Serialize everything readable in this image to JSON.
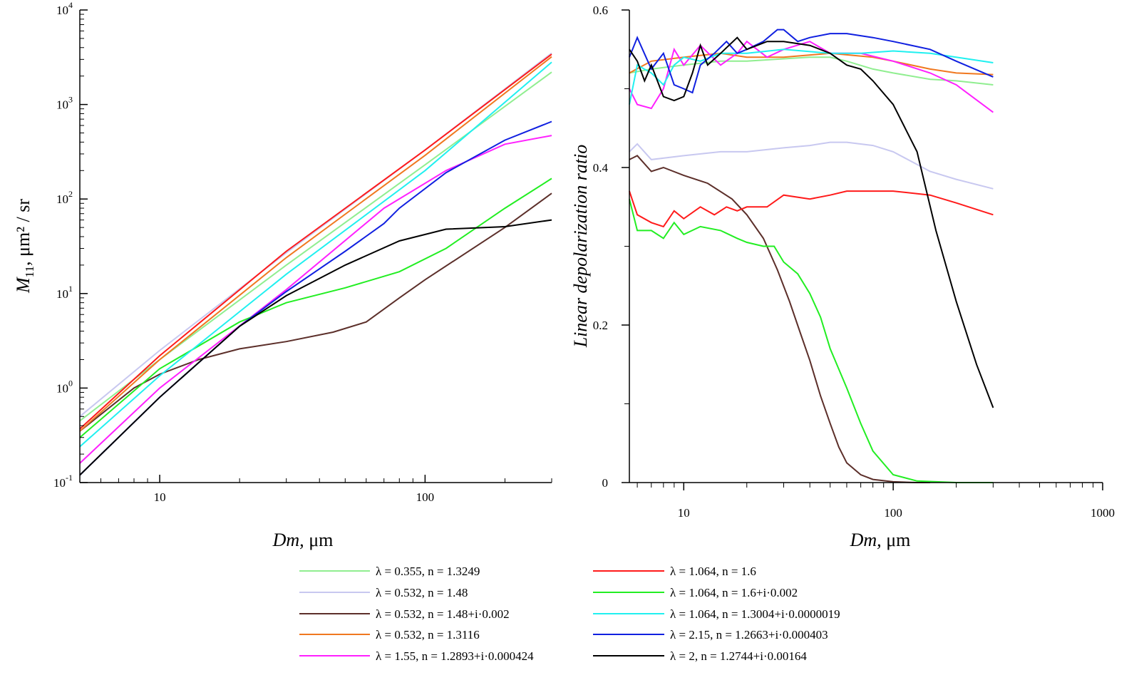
{
  "legend": [
    {
      "id": "s1",
      "label": "λ = 0.355, n = 1.3249",
      "color": "#90EE90"
    },
    {
      "id": "s2",
      "label": "λ = 0.532, n = 1.48",
      "color": "#C8C8F0"
    },
    {
      "id": "s3",
      "label": "λ = 0.532, n = 1.48+i·0.002",
      "color": "#5C2F2A"
    },
    {
      "id": "s4",
      "label": "λ = 0.532, n = 1.3116",
      "color": "#F07820"
    },
    {
      "id": "s5",
      "label": "λ = 1.55, n = 1.2893+i·0.000424",
      "color": "#FF20FF"
    },
    {
      "id": "s6",
      "label": "λ = 1.064, n = 1.6",
      "color": "#FF1A1A"
    },
    {
      "id": "s7",
      "label": "λ = 1.064, n = 1.6+i·0.002",
      "color": "#22EE22"
    },
    {
      "id": "s8",
      "label": "λ = 1.064, n = 1.3004+i·0.0000019",
      "color": "#20F0F0"
    },
    {
      "id": "s9",
      "label": "λ = 2.15, n = 1.2663+i·0.000403",
      "color": "#1020E0"
    },
    {
      "id": "s10",
      "label": "λ = 2, n = 1.2744+i·0.00164",
      "color": "#000000"
    }
  ],
  "chart_data": [
    {
      "type": "line",
      "xlabel": "Dm, μm",
      "ylabel": "M11, μm² / sr",
      "ylabel_main": "M",
      "ylabel_sub": "11",
      "ylabel_rest": ", μm² / sr",
      "xscale": "log",
      "yscale": "log",
      "xlim": [
        5,
        300
      ],
      "ylim": [
        0.1,
        10000
      ],
      "xticks_labeled": [
        {
          "value": 10,
          "label": "10"
        },
        {
          "value": 100,
          "label": "100"
        }
      ],
      "yticks": [
        {
          "value": 0.1,
          "base": "10",
          "exp": "-1"
        },
        {
          "value": 1,
          "base": "10",
          "exp": "0"
        },
        {
          "value": 10,
          "base": "10",
          "exp": "1"
        },
        {
          "value": 100,
          "base": "10",
          "exp": "2"
        },
        {
          "value": 1000,
          "base": "10",
          "exp": "3"
        },
        {
          "value": 10000,
          "base": "10",
          "exp": "4"
        }
      ],
      "series": [
        {
          "id": "s1",
          "x": [
            5,
            10,
            30,
            100,
            300
          ],
          "y": [
            0.45,
            2.0,
            20,
            230,
            2200
          ]
        },
        {
          "id": "s2",
          "x": [
            5,
            10,
            30,
            100,
            300
          ],
          "y": [
            0.5,
            2.5,
            27,
            330,
            3500
          ]
        },
        {
          "id": "s3",
          "x": [
            5,
            8,
            10,
            14,
            20,
            30,
            45,
            60,
            80,
            100,
            200,
            300
          ],
          "y": [
            0.35,
            1.0,
            1.4,
            2.0,
            2.6,
            3.1,
            3.9,
            5.0,
            9,
            14,
            50,
            115
          ]
        },
        {
          "id": "s4",
          "x": [
            5,
            10,
            30,
            100,
            300
          ],
          "y": [
            0.35,
            2.0,
            24,
            290,
            3200
          ]
        },
        {
          "id": "s5",
          "x": [
            5,
            10,
            30,
            70,
            120,
            200,
            300
          ],
          "y": [
            0.16,
            1.0,
            11,
            80,
            200,
            380,
            470
          ]
        },
        {
          "id": "s6",
          "x": [
            5,
            10,
            30,
            100,
            300
          ],
          "y": [
            0.37,
            2.2,
            28,
            330,
            3400
          ]
        },
        {
          "id": "s7",
          "x": [
            5,
            10,
            20,
            30,
            50,
            80,
            120,
            200,
            300
          ],
          "y": [
            0.3,
            1.6,
            5.0,
            8.0,
            11.5,
            17,
            30,
            80,
            165
          ]
        },
        {
          "id": "s8",
          "x": [
            5,
            10,
            30,
            100,
            300
          ],
          "y": [
            0.24,
            1.35,
            16,
            200,
            2800
          ]
        },
        {
          "id": "s9",
          "x": [
            5,
            10,
            20,
            30,
            50,
            70,
            80,
            120,
            200,
            300
          ],
          "y": [
            0.12,
            0.8,
            4.5,
            10.5,
            28,
            55,
            80,
            190,
            420,
            660
          ]
        },
        {
          "id": "s10",
          "x": [
            5,
            10,
            20,
            30,
            50,
            80,
            120,
            200,
            300
          ],
          "y": [
            0.12,
            0.8,
            4.5,
            9.5,
            20,
            36,
            48,
            51,
            60
          ]
        }
      ]
    },
    {
      "type": "line",
      "xlabel": "Dm, μm",
      "ylabel": "Linear depolarization ratio",
      "xscale": "log",
      "yscale": "linear",
      "xlim": [
        5.5,
        1000
      ],
      "ylim": [
        0,
        0.6
      ],
      "xticks_labeled": [
        {
          "value": 10,
          "label": "10"
        },
        {
          "value": 100,
          "label": "100"
        },
        {
          "value": 1000,
          "label": "1000"
        }
      ],
      "yticks": [
        {
          "value": 0,
          "label": "0"
        },
        {
          "value": 0.2,
          "label": "0.2"
        },
        {
          "value": 0.4,
          "label": "0.4"
        },
        {
          "value": 0.6,
          "label": "0.6"
        }
      ],
      "yticks_minor": [
        0.1,
        0.3,
        0.5
      ],
      "series": [
        {
          "id": "s1",
          "x": [
            5.5,
            7,
            10,
            15,
            20,
            30,
            40,
            50,
            60,
            80,
            100,
            150,
            200,
            300
          ],
          "y": [
            0.52,
            0.525,
            0.53,
            0.535,
            0.535,
            0.538,
            0.54,
            0.54,
            0.535,
            0.525,
            0.52,
            0.512,
            0.51,
            0.505
          ]
        },
        {
          "id": "s2",
          "x": [
            5.5,
            6,
            7,
            10,
            15,
            20,
            30,
            40,
            50,
            60,
            80,
            100,
            150,
            200,
            300
          ],
          "y": [
            0.42,
            0.43,
            0.41,
            0.415,
            0.42,
            0.42,
            0.425,
            0.428,
            0.432,
            0.432,
            0.428,
            0.42,
            0.395,
            0.385,
            0.373
          ]
        },
        {
          "id": "s3",
          "x": [
            5.5,
            6,
            7,
            8,
            10,
            13,
            17,
            20,
            24,
            28,
            32,
            36,
            40,
            45,
            50,
            55,
            60,
            70,
            80,
            100,
            130,
            150
          ],
          "y": [
            0.41,
            0.415,
            0.395,
            0.4,
            0.39,
            0.38,
            0.36,
            0.34,
            0.31,
            0.27,
            0.23,
            0.19,
            0.155,
            0.11,
            0.075,
            0.045,
            0.025,
            0.01,
            0.004,
            0.001,
            0.0,
            0.0
          ]
        },
        {
          "id": "s4",
          "x": [
            5.5,
            7,
            10,
            15,
            20,
            30,
            50,
            80,
            100,
            150,
            200,
            300
          ],
          "y": [
            0.52,
            0.535,
            0.54,
            0.545,
            0.54,
            0.54,
            0.545,
            0.54,
            0.535,
            0.525,
            0.52,
            0.518
          ]
        },
        {
          "id": "s5",
          "x": [
            5.5,
            6,
            7,
            8,
            9,
            10,
            12,
            15,
            18,
            20,
            25,
            30,
            40,
            50,
            70,
            100,
            150,
            200,
            300
          ],
          "y": [
            0.5,
            0.48,
            0.475,
            0.5,
            0.55,
            0.53,
            0.555,
            0.53,
            0.545,
            0.56,
            0.54,
            0.55,
            0.56,
            0.545,
            0.545,
            0.535,
            0.52,
            0.505,
            0.47
          ]
        },
        {
          "id": "s6",
          "x": [
            5.5,
            6,
            7,
            8,
            9,
            10,
            12,
            14,
            16,
            18,
            20,
            25,
            30,
            40,
            50,
            60,
            80,
            100,
            150,
            200,
            300
          ],
          "y": [
            0.37,
            0.34,
            0.33,
            0.325,
            0.345,
            0.335,
            0.35,
            0.34,
            0.35,
            0.345,
            0.35,
            0.35,
            0.365,
            0.36,
            0.365,
            0.37,
            0.37,
            0.37,
            0.365,
            0.355,
            0.34
          ]
        },
        {
          "id": "s7",
          "x": [
            5.5,
            6,
            7,
            8,
            9,
            10,
            12,
            15,
            18,
            20,
            24,
            27,
            30,
            35,
            40,
            45,
            50,
            60,
            70,
            80,
            100,
            130,
            200,
            300
          ],
          "y": [
            0.36,
            0.32,
            0.32,
            0.31,
            0.33,
            0.315,
            0.325,
            0.32,
            0.31,
            0.305,
            0.3,
            0.3,
            0.28,
            0.265,
            0.24,
            0.21,
            0.17,
            0.12,
            0.075,
            0.04,
            0.01,
            0.002,
            0.0,
            0.0
          ]
        },
        {
          "id": "s8",
          "x": [
            5.5,
            6,
            7,
            8,
            9,
            10,
            12,
            15,
            20,
            30,
            50,
            70,
            100,
            150,
            200,
            300
          ],
          "y": [
            0.48,
            0.53,
            0.52,
            0.505,
            0.53,
            0.54,
            0.535,
            0.545,
            0.545,
            0.55,
            0.545,
            0.545,
            0.548,
            0.545,
            0.54,
            0.533
          ]
        },
        {
          "id": "s9",
          "x": [
            5.5,
            6,
            7,
            8,
            9,
            10,
            11,
            12,
            14,
            16,
            18,
            20,
            24,
            28,
            30,
            35,
            40,
            50,
            60,
            80,
            100,
            150,
            200,
            300
          ],
          "y": [
            0.54,
            0.565,
            0.525,
            0.545,
            0.505,
            0.5,
            0.495,
            0.53,
            0.545,
            0.56,
            0.545,
            0.55,
            0.56,
            0.575,
            0.575,
            0.56,
            0.565,
            0.57,
            0.57,
            0.565,
            0.56,
            0.55,
            0.535,
            0.515
          ]
        },
        {
          "id": "s10",
          "x": [
            5.5,
            6,
            6.5,
            7,
            8,
            9,
            10,
            11,
            12,
            13,
            15,
            18,
            20,
            25,
            30,
            40,
            50,
            60,
            70,
            80,
            100,
            130,
            160,
            200,
            250,
            300
          ],
          "y": [
            0.55,
            0.535,
            0.51,
            0.53,
            0.49,
            0.485,
            0.49,
            0.52,
            0.555,
            0.53,
            0.545,
            0.565,
            0.55,
            0.56,
            0.56,
            0.555,
            0.545,
            0.53,
            0.525,
            0.51,
            0.48,
            0.42,
            0.32,
            0.23,
            0.15,
            0.095
          ]
        }
      ]
    }
  ]
}
